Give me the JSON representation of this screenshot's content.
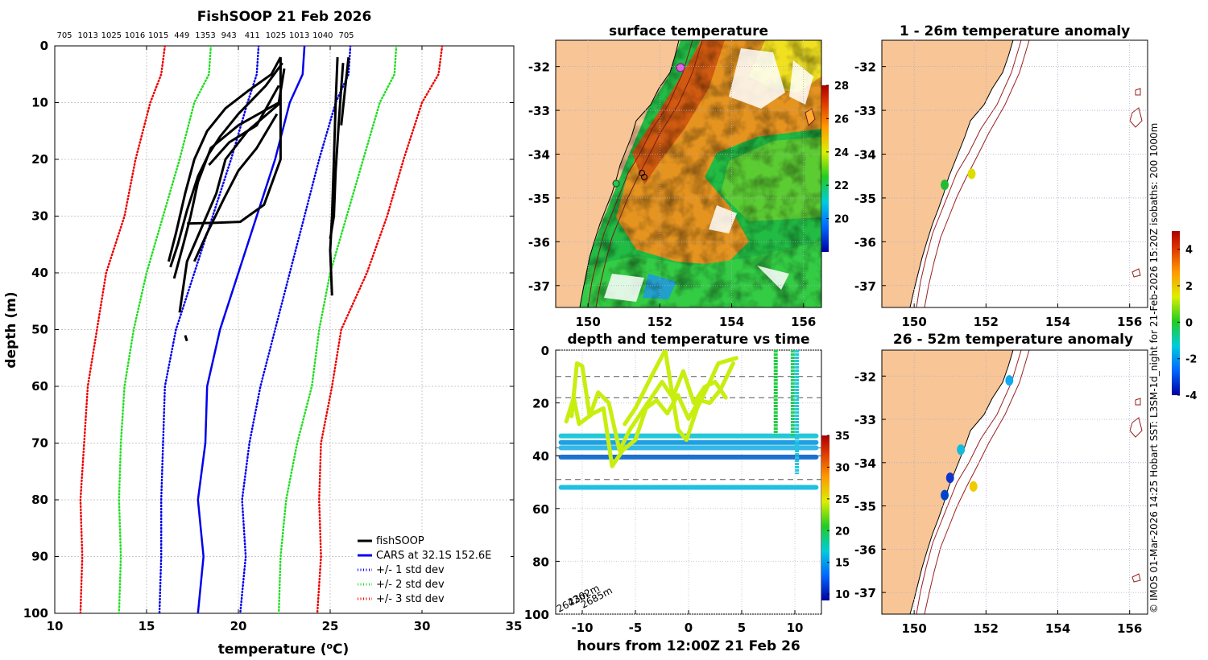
{
  "chart_data": [
    {
      "id": "profile",
      "type": "line",
      "title": "FishSOOP 21 Feb 2026",
      "xlabel": "temperature (°C)",
      "ylabel": "depth (m)",
      "xlim": [
        10,
        35
      ],
      "ylim": [
        100,
        0
      ],
      "xticks": [
        "10",
        "15",
        "20",
        "25",
        "30",
        "35"
      ],
      "yticks": [
        "0",
        "10",
        "20",
        "30",
        "40",
        "50",
        "60",
        "70",
        "80",
        "90",
        "100"
      ],
      "top_labels": [
        "705",
        "1013",
        "1025",
        "1016",
        "1015",
        "449",
        "1353",
        "943",
        "411",
        "1025",
        "1013",
        "1040",
        "705"
      ],
      "legend": [
        {
          "label": "fishSOOP",
          "color": "#000000",
          "style": "solid"
        },
        {
          "label": "CARS at 32.1S 152.6E",
          "color": "#0000ee",
          "style": "solid"
        },
        {
          "label": "+/- 1 std dev",
          "color": "#0000ee",
          "style": "dotted"
        },
        {
          "label": "+/- 2 std dev",
          "color": "#22dd22",
          "style": "dotted"
        },
        {
          "label": "+/- 3 std dev",
          "color": "#ee0000",
          "style": "dotted"
        }
      ],
      "climatology": {
        "depth": [
          0,
          5,
          10,
          20,
          30,
          40,
          50,
          60,
          70,
          80,
          90,
          100
        ],
        "mean": [
          23.6,
          23.5,
          22.8,
          22.0,
          21.0,
          20.0,
          19.0,
          18.3,
          18.2,
          17.8,
          18.1,
          17.8
        ],
        "sd1_low": [
          21.1,
          21.0,
          20.5,
          19.6,
          18.6,
          17.6,
          16.6,
          16.0,
          15.9,
          15.8,
          15.8,
          15.7
        ],
        "sd1_high": [
          26.1,
          26.0,
          25.3,
          24.4,
          23.6,
          22.8,
          22.0,
          21.2,
          20.6,
          20.2,
          20.4,
          20.1
        ],
        "sd2_low": [
          18.5,
          18.4,
          17.6,
          16.8,
          15.9,
          15.0,
          14.3,
          13.8,
          13.6,
          13.5,
          13.6,
          13.5
        ],
        "sd2_high": [
          28.6,
          28.5,
          27.7,
          26.8,
          25.9,
          25.0,
          24.4,
          24.0,
          23.2,
          22.6,
          22.3,
          22.2
        ],
        "sd3_low": [
          16.0,
          15.8,
          15.2,
          14.4,
          13.8,
          12.8,
          12.3,
          11.8,
          11.6,
          11.4,
          11.5,
          11.4
        ],
        "sd3_high": [
          31.1,
          30.9,
          30.0,
          29.0,
          28.1,
          27.0,
          25.6,
          25.1,
          24.5,
          24.4,
          24.5,
          24.3
        ]
      },
      "profiles": [
        {
          "points": [
            [
              22.3,
              2
            ],
            [
              21.8,
              5
            ],
            [
              20.5,
              8
            ],
            [
              19.3,
              11
            ],
            [
              18.3,
              15
            ],
            [
              17.6,
              20
            ],
            [
              17.1,
              26
            ],
            [
              16.6,
              33
            ],
            [
              16.2,
              38
            ]
          ]
        },
        {
          "points": [
            [
              22.4,
              3
            ],
            [
              21.5,
              7
            ],
            [
              20.0,
              12
            ],
            [
              19.0,
              16
            ],
            [
              18.4,
              19
            ],
            [
              17.8,
              23
            ],
            [
              17.2,
              29
            ],
            [
              16.7,
              35
            ],
            [
              16.3,
              39
            ]
          ]
        },
        {
          "points": [
            [
              22.5,
              4
            ],
            [
              22.2,
              10
            ],
            [
              20.0,
              14
            ],
            [
              18.5,
              18
            ],
            [
              17.8,
              24
            ],
            [
              17.4,
              30
            ],
            [
              17.0,
              35
            ],
            [
              16.5,
              41
            ]
          ]
        },
        {
          "points": [
            [
              22.3,
              10
            ],
            [
              20.5,
              15
            ],
            [
              19.3,
              20
            ],
            [
              18.8,
              26
            ],
            [
              18.0,
              32
            ],
            [
              17.2,
              38
            ],
            [
              16.8,
              47
            ]
          ]
        },
        {
          "points": [
            [
              22.1,
              12
            ],
            [
              21.0,
              18
            ],
            [
              20.0,
              22
            ],
            [
              19.2,
              27
            ],
            [
              18.3,
              33
            ],
            [
              17.6,
              38
            ]
          ]
        },
        {
          "points": [
            [
              22.2,
              7
            ],
            [
              21.0,
              14
            ],
            [
              19.5,
              17
            ],
            [
              18.4,
              21
            ]
          ]
        },
        {
          "points": [
            [
              22.3,
              2
            ],
            [
              22.3,
              20
            ],
            [
              21.4,
              28
            ],
            [
              20.1,
              31
            ],
            [
              18.5,
              31.2
            ],
            [
              17.2,
              31.3
            ]
          ]
        },
        {
          "points": [
            [
              25.4,
              2
            ],
            [
              25.3,
              10
            ],
            [
              25.2,
              20
            ],
            [
              25.1,
              30
            ],
            [
              25.0,
              36
            ],
            [
              25.1,
              44
            ]
          ]
        },
        {
          "points": [
            [
              25.7,
              3
            ],
            [
              25.5,
              12
            ],
            [
              25.3,
              22
            ],
            [
              25.2,
              30
            ],
            [
              25.0,
              34
            ]
          ]
        },
        {
          "points": [
            [
              26.0,
              2
            ],
            [
              25.8,
              8
            ],
            [
              25.6,
              14
            ]
          ]
        },
        {
          "points": [
            [
              17.1,
              51
            ],
            [
              17.2,
              52
            ]
          ]
        }
      ]
    },
    {
      "id": "sst",
      "type": "heatmap",
      "title": "surface temperature",
      "xticks": [
        "150",
        "152",
        "154",
        "156"
      ],
      "yticks": [
        "-32",
        "-33",
        "-34",
        "-35",
        "-36",
        "-37"
      ],
      "xlim": [
        149.1,
        156.5
      ],
      "ylim": [
        -37.5,
        -31.4
      ],
      "colorbar": {
        "ticks": [
          "20",
          "22",
          "24",
          "26",
          "28"
        ],
        "range": [
          18,
          28
        ]
      }
    },
    {
      "id": "anomaly1",
      "type": "scatter",
      "title": "1 - 26m temperature anomaly",
      "xticks": [
        "150",
        "152",
        "154",
        "156"
      ],
      "yticks": [
        "-32",
        "-33",
        "-34",
        "-35",
        "-36",
        "-37"
      ],
      "xlim": [
        149.1,
        156.5
      ],
      "ylim": [
        -37.5,
        -31.4
      ],
      "points": [
        {
          "lon": 150.85,
          "lat": -34.7,
          "color": "#22bb33"
        },
        {
          "lon": 151.6,
          "lat": -34.45,
          "color": "#dddd00"
        }
      ]
    },
    {
      "id": "anomaly2",
      "type": "scatter",
      "title": "26 - 52m temperature anomaly",
      "xticks": [
        "150",
        "152",
        "154",
        "156"
      ],
      "yticks": [
        "-32",
        "-33",
        "-34",
        "-35",
        "-36",
        "-37"
      ],
      "xlim": [
        149.1,
        156.5
      ],
      "ylim": [
        -37.5,
        -31.4
      ],
      "colorbar": {
        "ticks": [
          "-4",
          "-2",
          "0",
          "2",
          "4"
        ],
        "range": [
          -4,
          5
        ]
      },
      "points": [
        {
          "lon": 152.65,
          "lat": -32.1,
          "color": "#11aaee"
        },
        {
          "lon": 151.3,
          "lat": -33.7,
          "color": "#11bbdd"
        },
        {
          "lon": 151.0,
          "lat": -34.35,
          "color": "#1133cc"
        },
        {
          "lon": 150.85,
          "lat": -34.75,
          "color": "#0044cc"
        },
        {
          "lon": 151.65,
          "lat": -34.55,
          "color": "#eecc00"
        }
      ]
    },
    {
      "id": "timeseries",
      "type": "scatter",
      "title": "depth and temperature vs time",
      "xlabel": "hours from 12:00Z 21 Feb 26",
      "xticks": [
        "-10",
        "-5",
        "0",
        "5",
        "10"
      ],
      "yticks": [
        "0",
        "20",
        "40",
        "60",
        "80",
        "100"
      ],
      "xlim": [
        -12.5,
        12.5
      ],
      "ylim": [
        100,
        0
      ],
      "colorbar": {
        "ticks": [
          "10",
          "15",
          "20",
          "25",
          "30",
          "35"
        ],
        "range": [
          9,
          35
        ]
      },
      "bottom_depth_labels": [
        "2642m",
        "2302m",
        "2685m"
      ],
      "dashed_depths": [
        10,
        18,
        37,
        40,
        49
      ],
      "tracks": [
        {
          "color": "#c8ee10",
          "points": [
            [
              -11.5,
              27
            ],
            [
              -10.8,
              18
            ],
            [
              -10.3,
              28
            ],
            [
              -9,
              24
            ],
            [
              -8,
              22
            ],
            [
              -7.2,
              44
            ],
            [
              -6.2,
              38
            ],
            [
              -5,
              34
            ],
            [
              -4,
              22
            ],
            [
              -3,
              19
            ],
            [
              -2,
              24
            ],
            [
              -1,
              17
            ],
            [
              0,
              26
            ],
            [
              1,
              19
            ],
            [
              2,
              20
            ],
            [
              3,
              15
            ],
            [
              4.2,
              5
            ]
          ]
        },
        {
          "color": "#c8ee10",
          "points": [
            [
              -11,
              25
            ],
            [
              -10.5,
              5
            ],
            [
              -10,
              6
            ],
            [
              -9.3,
              25
            ],
            [
              -8.5,
              16
            ],
            [
              -7.5,
              20
            ],
            [
              -6.5,
              38
            ],
            [
              -5.5,
              30
            ],
            [
              -4.5,
              24
            ],
            [
              -3.5,
              18
            ],
            [
              -2.5,
              12
            ],
            [
              -1.5,
              18
            ],
            [
              -0.5,
              8
            ],
            [
              0.5,
              20
            ],
            [
              1.5,
              14
            ],
            [
              2.5,
              12
            ],
            [
              3.5,
              18
            ]
          ]
        },
        {
          "color": "#c8ee10",
          "points": [
            [
              -6,
              28
            ],
            [
              -5,
              22
            ],
            [
              -3.5,
              10
            ],
            [
              -2.2,
              0
            ],
            [
              -1,
              30
            ],
            [
              -0.2,
              34
            ],
            [
              0.8,
              22
            ],
            [
              2,
              12
            ],
            [
              2.8,
              5
            ],
            [
              4.5,
              3
            ]
          ]
        }
      ],
      "bands": [
        {
          "color": "#22c8d8",
          "depth": 32.5
        },
        {
          "color": "#1fa0e0",
          "depth": 35
        },
        {
          "color": "#33b8e8",
          "depth": 37
        },
        {
          "color": "#1e70d0",
          "depth": 40.5
        },
        {
          "color": "#20c0e0",
          "depth": 52
        }
      ],
      "vertical_casts": [
        {
          "color": "#22cc44",
          "hour": 8.2,
          "top": 0,
          "bottom": 32
        },
        {
          "color": "#22cc66",
          "hour": 9.8,
          "top": 0,
          "bottom": 33
        },
        {
          "color": "#20c8e0",
          "hour": 10.2,
          "top": 0,
          "bottom": 47
        }
      ]
    }
  ],
  "credit": "© IMOS 01-Mar-2026 14:25 Hobart SST: L3SM-1d_night for 21-Feb-2026 15:20Z isobaths: 200  1000m"
}
